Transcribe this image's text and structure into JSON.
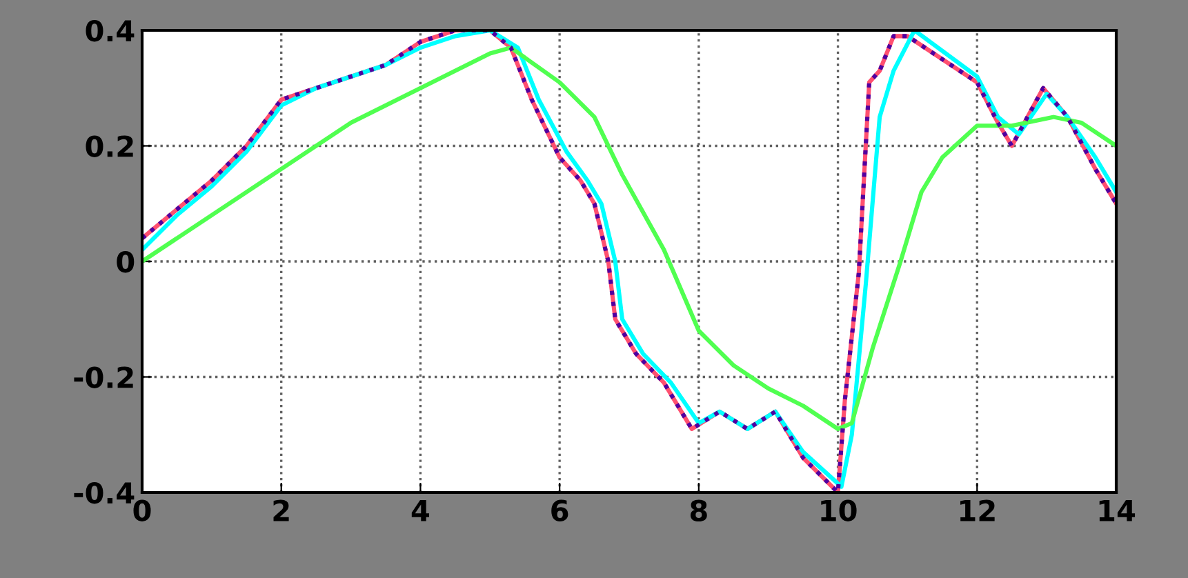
{
  "chart_data": {
    "type": "line",
    "xlim": [
      0,
      14
    ],
    "ylim": [
      -0.4,
      0.4
    ],
    "xticks": [
      0,
      2,
      4,
      6,
      8,
      10,
      12,
      14
    ],
    "yticks": [
      -0.4,
      -0.2,
      0,
      0.2,
      0.4
    ],
    "grid": true,
    "line_style": "solid",
    "series": [
      {
        "color": "#ff5070",
        "x": [
          0,
          0.5,
          1,
          1.5,
          2,
          2.5,
          3,
          3.5,
          4,
          4.5,
          5,
          5.3,
          5.6,
          6,
          6.3,
          6.5,
          6.7,
          6.8,
          7.1,
          7.5,
          7.9,
          8.3,
          8.7,
          9.1,
          9.5,
          10,
          10.1,
          10.3,
          10.45,
          10.6,
          10.8,
          11,
          12,
          12.3,
          12.5,
          12.95,
          13.3,
          13.7,
          14
        ],
        "values": [
          0.04,
          0.09,
          0.14,
          0.2,
          0.28,
          0.3,
          0.32,
          0.34,
          0.38,
          0.4,
          0.4,
          0.37,
          0.28,
          0.18,
          0.14,
          0.1,
          0,
          -0.1,
          -0.16,
          -0.21,
          -0.29,
          -0.26,
          -0.29,
          -0.26,
          -0.34,
          -0.4,
          -0.24,
          -0.02,
          0.31,
          0.33,
          0.39,
          0.39,
          0.31,
          0.24,
          0.2,
          0.3,
          0.25,
          0.16,
          0.1
        ]
      },
      {
        "color": "#00ffff",
        "x": [
          0,
          0.5,
          1,
          1.5,
          2,
          2.5,
          3,
          3.5,
          4,
          4.5,
          5,
          5.4,
          5.7,
          6.1,
          6.4,
          6.6,
          6.8,
          6.9,
          7.2,
          7.6,
          8,
          8.3,
          8.7,
          9.1,
          9.5,
          10.05,
          10.2,
          10.4,
          10.6,
          10.8,
          11.1,
          12,
          12.3,
          12.6,
          13,
          13.3,
          13.7,
          14
        ],
        "values": [
          0.02,
          0.08,
          0.13,
          0.19,
          0.27,
          0.3,
          0.32,
          0.34,
          0.37,
          0.39,
          0.4,
          0.37,
          0.28,
          0.19,
          0.14,
          0.1,
          0,
          -0.1,
          -0.16,
          -0.21,
          -0.28,
          -0.26,
          -0.29,
          -0.26,
          -0.33,
          -0.39,
          -0.3,
          -0.04,
          0.25,
          0.33,
          0.4,
          0.32,
          0.25,
          0.22,
          0.29,
          0.25,
          0.18,
          0.12
        ]
      },
      {
        "color": "#50ff50",
        "x": [
          0,
          1,
          2,
          3,
          4,
          5,
          5.3,
          6,
          6.5,
          6.9,
          7.5,
          8,
          8.5,
          9,
          9.5,
          10,
          10.2,
          10.5,
          10.9,
          11.2,
          11.5,
          12,
          12.5,
          13.1,
          13.5,
          14
        ],
        "values": [
          0,
          0.08,
          0.16,
          0.24,
          0.3,
          0.36,
          0.37,
          0.31,
          0.25,
          0.15,
          0.02,
          -0.12,
          -0.18,
          -0.22,
          -0.25,
          -0.29,
          -0.28,
          -0.15,
          0,
          0.12,
          0.18,
          0.235,
          0.235,
          0.25,
          0.24,
          0.2
        ]
      },
      {
        "color": "#5000a0",
        "line_style": "dotted",
        "x": [
          0,
          0.5,
          1,
          1.5,
          2,
          2.5,
          3,
          3.5,
          4,
          4.5,
          5,
          5.3,
          5.6,
          6,
          6.3,
          6.5,
          6.7,
          6.8,
          7.1,
          7.5,
          7.9,
          8.3,
          8.7,
          9.1,
          9.5,
          10,
          10.1,
          10.3,
          10.45,
          10.6,
          10.8,
          11,
          12,
          12.3,
          12.5,
          12.95,
          13.3,
          13.7,
          14
        ],
        "values": [
          0.04,
          0.09,
          0.14,
          0.2,
          0.28,
          0.3,
          0.32,
          0.34,
          0.38,
          0.4,
          0.4,
          0.37,
          0.28,
          0.18,
          0.14,
          0.1,
          0,
          -0.1,
          -0.16,
          -0.21,
          -0.29,
          -0.26,
          -0.29,
          -0.26,
          -0.34,
          -0.4,
          -0.24,
          -0.02,
          0.31,
          0.33,
          0.39,
          0.39,
          0.31,
          0.24,
          0.2,
          0.3,
          0.25,
          0.16,
          0.1
        ]
      }
    ]
  }
}
